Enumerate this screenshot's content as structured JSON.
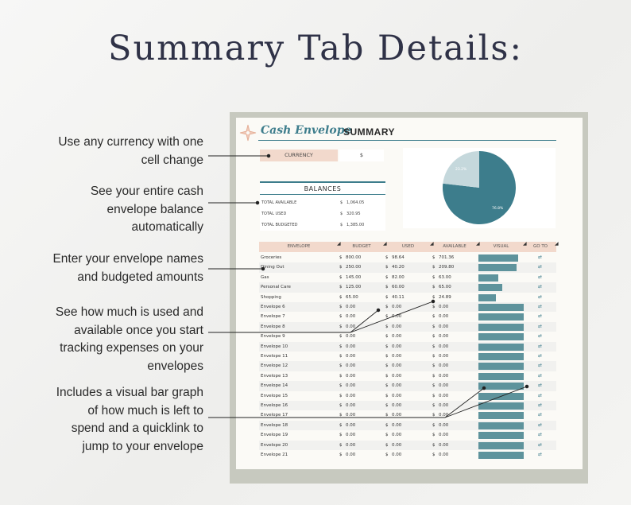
{
  "headline": "Summary Tab Details:",
  "callouts": [
    {
      "lines": [
        "Use any currency with one",
        "cell change"
      ]
    },
    {
      "lines": [
        "See your entire cash",
        "envelope balance",
        "automatically"
      ]
    },
    {
      "lines": [
        "Enter your envelope names",
        "and budgeted amounts"
      ]
    },
    {
      "lines": [
        "See how much is used and",
        "available once you start",
        "tracking expenses on your",
        "envelopes"
      ]
    },
    {
      "lines": [
        "Includes a visual bar graph",
        "of how much is left to",
        "spend and a quicklink to",
        "jump to your envelope"
      ]
    }
  ],
  "sheet": {
    "title_script": "Cash Envelope",
    "title_caps": "SUMMARY",
    "currency_label": "CURRENCY",
    "currency_value": "$",
    "balances": {
      "title": "BALANCES",
      "rows": [
        {
          "label": "TOTAL AVAILABLE",
          "cur": "$",
          "amount": "1,064.05"
        },
        {
          "label": "TOTAL USED",
          "cur": "$",
          "amount": "320.95"
        },
        {
          "label": "TOTAL BUDGETED",
          "cur": "$",
          "amount": "1,385.00"
        }
      ]
    },
    "pie": {
      "used_pct": 23.2,
      "available_pct": 76.8,
      "used_label": "23.2%",
      "available_label": "76.8%",
      "used_color": "#c5d8dc",
      "available_color": "#3d7d8c"
    },
    "columns": [
      "ENVELOPE",
      "BUDGET",
      "USED",
      "AVAILABLE",
      "VISUAL",
      "GO TO"
    ],
    "go_glyph": "⇄",
    "rows": [
      {
        "name": "Groceries",
        "budget": "800.00",
        "used": "98.64",
        "available": "701.36",
        "remaining": 0.88
      },
      {
        "name": "Dining Out",
        "budget": "250.00",
        "used": "40.20",
        "available": "209.80",
        "remaining": 0.84
      },
      {
        "name": "Gas",
        "budget": "145.00",
        "used": "82.00",
        "available": "63.00",
        "remaining": 0.43
      },
      {
        "name": "Personal Care",
        "budget": "125.00",
        "used": "60.00",
        "available": "65.00",
        "remaining": 0.52
      },
      {
        "name": "Shopping",
        "budget": "65.00",
        "used": "40.11",
        "available": "24.89",
        "remaining": 0.38
      },
      {
        "name": "Envelope 6",
        "budget": "0.00",
        "used": "0.00",
        "available": "0.00",
        "remaining": 1
      },
      {
        "name": "Envelope 7",
        "budget": "0.00",
        "used": "0.00",
        "available": "0.00",
        "remaining": 1
      },
      {
        "name": "Envelope 8",
        "budget": "0.00",
        "used": "0.00",
        "available": "0.00",
        "remaining": 1
      },
      {
        "name": "Envelope 9",
        "budget": "0.00",
        "used": "0.00",
        "available": "0.00",
        "remaining": 1
      },
      {
        "name": "Envelope 10",
        "budget": "0.00",
        "used": "0.00",
        "available": "0.00",
        "remaining": 1
      },
      {
        "name": "Envelope 11",
        "budget": "0.00",
        "used": "0.00",
        "available": "0.00",
        "remaining": 1
      },
      {
        "name": "Envelope 12",
        "budget": "0.00",
        "used": "0.00",
        "available": "0.00",
        "remaining": 1
      },
      {
        "name": "Envelope 13",
        "budget": "0.00",
        "used": "0.00",
        "available": "0.00",
        "remaining": 1
      },
      {
        "name": "Envelope 14",
        "budget": "0.00",
        "used": "0.00",
        "available": "0.00",
        "remaining": 1
      },
      {
        "name": "Envelope 15",
        "budget": "0.00",
        "used": "0.00",
        "available": "0.00",
        "remaining": 1
      },
      {
        "name": "Envelope 16",
        "budget": "0.00",
        "used": "0.00",
        "available": "0.00",
        "remaining": 1
      },
      {
        "name": "Envelope 17",
        "budget": "0.00",
        "used": "0.00",
        "available": "0.00",
        "remaining": 1
      },
      {
        "name": "Envelope 18",
        "budget": "0.00",
        "used": "0.00",
        "available": "0.00",
        "remaining": 1
      },
      {
        "name": "Envelope 19",
        "budget": "0.00",
        "used": "0.00",
        "available": "0.00",
        "remaining": 1
      },
      {
        "name": "Envelope 20",
        "budget": "0.00",
        "used": "0.00",
        "available": "0.00",
        "remaining": 1
      },
      {
        "name": "Envelope 21",
        "budget": "0.00",
        "used": "0.00",
        "available": "0.00",
        "remaining": 1
      }
    ]
  },
  "colors": {
    "accent": "#3d7d8c",
    "bar": "#5e939c",
    "header_bg": "#f2d9cc",
    "headline": "#2f3247"
  }
}
